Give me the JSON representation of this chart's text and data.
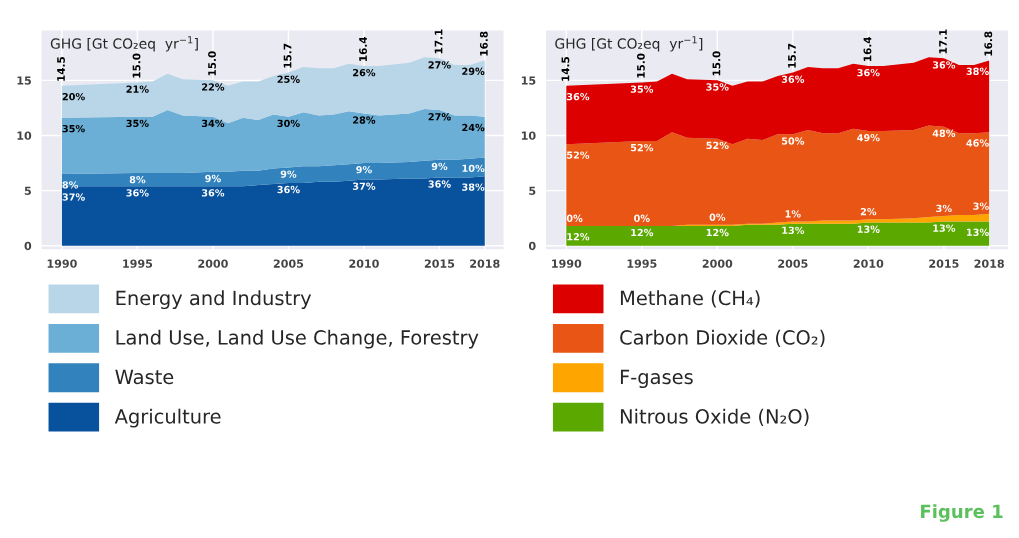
{
  "chart_data": [
    {
      "type": "area",
      "stacked": true,
      "ylabel": "GHG [Gt CO₂eq  yr$^{−1}$]",
      "x": [
        1990,
        1995,
        1996,
        1997,
        1998,
        2000,
        2001,
        2002,
        2003,
        2004,
        2005,
        2006,
        2007,
        2008,
        2009,
        2010,
        2011,
        2013,
        2014,
        2015,
        2016,
        2017,
        2018
      ],
      "xlim": [
        1988.6,
        2019.3
      ],
      "xticks": [
        1990,
        1995,
        2000,
        2005,
        2010,
        2015,
        2018
      ],
      "ylim": [
        -0.4,
        19.6
      ],
      "yticks": [
        0,
        5,
        10,
        15
      ],
      "grid": true,
      "legend": "bottom",
      "series": [
        {
          "name": "Agriculture",
          "color": "#08519c",
          "values": [
            5.4,
            5.4,
            5.4,
            5.4,
            5.4,
            5.4,
            5.4,
            5.4,
            5.5,
            5.6,
            5.7,
            5.7,
            5.8,
            5.8,
            5.9,
            6.0,
            6.0,
            6.1,
            6.1,
            6.2,
            6.2,
            6.2,
            6.3
          ]
        },
        {
          "name": "Waste",
          "color": "#3182bd",
          "values": [
            1.1,
            1.2,
            1.2,
            1.2,
            1.2,
            1.3,
            1.3,
            1.4,
            1.3,
            1.4,
            1.4,
            1.5,
            1.4,
            1.5,
            1.5,
            1.5,
            1.5,
            1.5,
            1.6,
            1.6,
            1.6,
            1.7,
            1.7
          ]
        },
        {
          "name": "Land Use, Land Use Change, Forestry",
          "color": "#6baed6",
          "values": [
            5.1,
            5.1,
            5.1,
            5.7,
            5.2,
            5.0,
            4.4,
            4.8,
            4.6,
            4.9,
            4.6,
            4.9,
            4.6,
            4.6,
            4.8,
            4.5,
            4.3,
            4.4,
            4.7,
            4.5,
            4.0,
            3.9,
            3.7
          ]
        },
        {
          "name": "Energy and Industry",
          "color": "#b9d6e8",
          "values": [
            2.9,
            3.1,
            3.2,
            3.3,
            3.3,
            3.3,
            3.4,
            3.3,
            3.5,
            3.5,
            4.0,
            4.1,
            4.3,
            4.2,
            4.3,
            4.3,
            4.5,
            4.6,
            4.7,
            4.7,
            4.6,
            4.6,
            5.1
          ]
        }
      ],
      "totals": [
        "14.5",
        "15.0",
        null,
        null,
        null,
        "15.0",
        null,
        null,
        null,
        null,
        "15.7",
        null,
        null,
        null,
        null,
        "16.4",
        null,
        null,
        null,
        "17.1",
        null,
        null,
        "16.8"
      ],
      "annotations": [
        {
          "text": "20%",
          "x": 1990,
          "y": 14.5
        },
        {
          "text": "21%",
          "x": 1995,
          "y": 14.8
        },
        {
          "text": "22%",
          "x": 2000,
          "y": 15.0
        },
        {
          "text": "25%",
          "x": 2005,
          "y": 15.7
        },
        {
          "text": "26%",
          "x": 2010,
          "y": 16.3
        },
        {
          "text": "27%",
          "x": 2015,
          "y": 17.0
        },
        {
          "text": "29%",
          "x": 2018,
          "y": 16.8
        },
        {
          "text": "35%",
          "x": 1990,
          "y": 11.6
        },
        {
          "text": "35%",
          "x": 1995,
          "y": 11.7
        },
        {
          "text": "34%",
          "x": 2000,
          "y": 11.7
        },
        {
          "text": "30%",
          "x": 2005,
          "y": 11.7
        },
        {
          "text": "28%",
          "x": 2010,
          "y": 12.0
        },
        {
          "text": "27%",
          "x": 2015,
          "y": 12.3
        },
        {
          "text": "24%",
          "x": 2018,
          "y": 11.7
        },
        {
          "text": "8%",
          "x": 1990,
          "y": 6.5
        },
        {
          "text": "8%",
          "x": 1995,
          "y": 6.6
        },
        {
          "text": "9%",
          "x": 2000,
          "y": 6.7
        },
        {
          "text": "9%",
          "x": 2005,
          "y": 7.1
        },
        {
          "text": "9%",
          "x": 2010,
          "y": 7.5
        },
        {
          "text": "9%",
          "x": 2015,
          "y": 7.8
        },
        {
          "text": "10%",
          "x": 2018,
          "y": 8.0
        },
        {
          "text": "37%",
          "x": 1990,
          "y": 5.4
        },
        {
          "text": "36%",
          "x": 1995,
          "y": 5.4
        },
        {
          "text": "36%",
          "x": 2000,
          "y": 5.4
        },
        {
          "text": "36%",
          "x": 2005,
          "y": 5.7
        },
        {
          "text": "37%",
          "x": 2010,
          "y": 6.0
        },
        {
          "text": "36%",
          "x": 2015,
          "y": 6.2
        },
        {
          "text": "38%",
          "x": 2018,
          "y": 6.3
        }
      ]
    },
    {
      "type": "area",
      "stacked": true,
      "ylabel": "GHG [Gt CO₂eq  yr$^{−1}$]",
      "x": [
        1990,
        1995,
        1996,
        1997,
        1998,
        2000,
        2001,
        2002,
        2003,
        2004,
        2005,
        2006,
        2007,
        2008,
        2009,
        2010,
        2011,
        2013,
        2014,
        2015,
        2016,
        2017,
        2018
      ],
      "xlim": [
        1988.6,
        2019.3
      ],
      "xticks": [
        1990,
        1995,
        2000,
        2005,
        2010,
        2015,
        2018
      ],
      "ylim": [
        -0.4,
        19.6
      ],
      "yticks": [
        0,
        5,
        10,
        15
      ],
      "grid": true,
      "legend": "bottom",
      "series": [
        {
          "name": "Nitrous Oxide (N₂O)",
          "color": "#5aa800",
          "values": [
            1.8,
            1.8,
            1.8,
            1.8,
            1.8,
            1.8,
            1.8,
            1.9,
            1.9,
            1.9,
            2.0,
            2.0,
            2.0,
            2.0,
            2.0,
            2.1,
            2.1,
            2.1,
            2.1,
            2.2,
            2.2,
            2.2,
            2.2
          ]
        },
        {
          "name": "F-gases",
          "color": "#ffa500",
          "values": [
            0,
            0,
            0,
            0,
            0.1,
            0.1,
            0.1,
            0.1,
            0.1,
            0.2,
            0.2,
            0.2,
            0.3,
            0.3,
            0.3,
            0.3,
            0.3,
            0.4,
            0.5,
            0.5,
            0.6,
            0.6,
            0.7
          ]
        },
        {
          "name": "Carbon Dioxide (CO₂)",
          "color": "#e95514",
          "values": [
            7.4,
            7.7,
            7.7,
            8.5,
            7.9,
            7.8,
            7.3,
            7.7,
            7.6,
            8.0,
            7.9,
            8.3,
            7.9,
            7.9,
            8.3,
            8.0,
            8.0,
            8.0,
            8.3,
            8.1,
            7.4,
            7.4,
            7.4
          ]
        },
        {
          "name": "Methane (CH₄)",
          "color": "#dd0000",
          "values": [
            5.3,
            5.3,
            5.4,
            5.3,
            5.3,
            5.3,
            5.3,
            5.2,
            5.3,
            5.3,
            5.6,
            5.7,
            5.9,
            5.9,
            5.9,
            5.9,
            5.9,
            6.1,
            6.2,
            6.2,
            6.2,
            6.2,
            6.5
          ]
        }
      ],
      "totals": [
        "14.5",
        "15.0",
        null,
        null,
        null,
        "15.0",
        null,
        null,
        null,
        null,
        "15.7",
        null,
        null,
        null,
        null,
        "16.4",
        null,
        null,
        null,
        "17.1",
        null,
        null,
        "16.8"
      ],
      "annotations": [
        {
          "text": "36%",
          "x": 1990,
          "y": 14.5
        },
        {
          "text": "35%",
          "x": 1995,
          "y": 14.8
        },
        {
          "text": "35%",
          "x": 2000,
          "y": 15.0
        },
        {
          "text": "36%",
          "x": 2005,
          "y": 15.7
        },
        {
          "text": "36%",
          "x": 2010,
          "y": 16.3
        },
        {
          "text": "36%",
          "x": 2015,
          "y": 17.0
        },
        {
          "text": "38%",
          "x": 2018,
          "y": 16.8
        },
        {
          "text": "52%",
          "x": 1990,
          "y": 9.2
        },
        {
          "text": "52%",
          "x": 1995,
          "y": 9.5
        },
        {
          "text": "52%",
          "x": 2000,
          "y": 9.7
        },
        {
          "text": "50%",
          "x": 2005,
          "y": 10.1
        },
        {
          "text": "49%",
          "x": 2010,
          "y": 10.4
        },
        {
          "text": "48%",
          "x": 2015,
          "y": 10.8
        },
        {
          "text": "46%",
          "x": 2018,
          "y": 10.3
        },
        {
          "text": "0%",
          "x": 1990,
          "y": 1.8
        },
        {
          "text": "0%",
          "x": 1995,
          "y": 1.8
        },
        {
          "text": "0%",
          "x": 2000,
          "y": 1.9
        },
        {
          "text": "1%",
          "x": 2005,
          "y": 2.2
        },
        {
          "text": "2%",
          "x": 2010,
          "y": 2.4
        },
        {
          "text": "3%",
          "x": 2015,
          "y": 2.7
        },
        {
          "text": "3%",
          "x": 2018,
          "y": 2.9
        },
        {
          "text": "12%",
          "x": 1990,
          "y": 1.8
        },
        {
          "text": "12%",
          "x": 1995,
          "y": 1.8
        },
        {
          "text": "12%",
          "x": 2000,
          "y": 1.8
        },
        {
          "text": "13%",
          "x": 2005,
          "y": 2.0
        },
        {
          "text": "13%",
          "x": 2010,
          "y": 2.1
        },
        {
          "text": "13%",
          "x": 2015,
          "y": 2.2
        },
        {
          "text": "13%",
          "x": 2018,
          "y": 2.2
        },
        "Figure 1"
      ]
    }
  ]
}
